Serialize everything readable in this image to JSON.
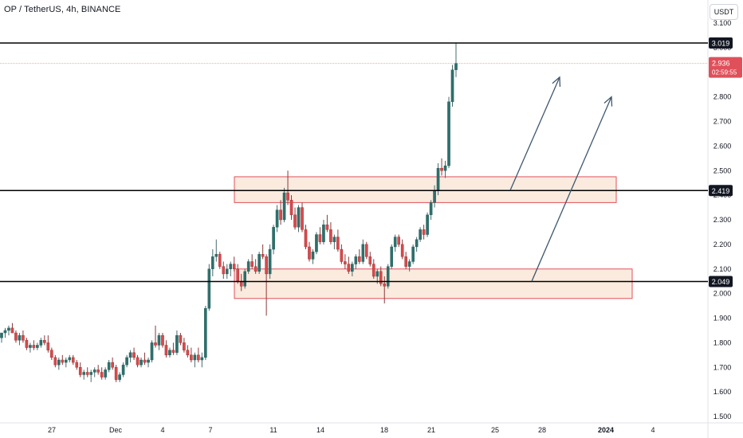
{
  "header": {
    "title": "OP / TetherUS, 4h, BINANCE",
    "unit": "USDT"
  },
  "chart_data": {
    "type": "candlestick",
    "ylim": [
      1.5,
      3.14
    ],
    "y_ticks": [
      "1.500",
      "1.600",
      "1.700",
      "1.800",
      "1.900",
      "2.000",
      "2.100",
      "2.200",
      "2.300",
      "2.400",
      "2.500",
      "2.600",
      "2.700",
      "2.800",
      "2.900",
      "3.000",
      "3.100"
    ],
    "x_ticks": [
      "27",
      "Dec",
      "4",
      "7",
      "11",
      "14",
      "18",
      "21",
      "25",
      "28",
      "2024",
      "4"
    ],
    "horizontal_levels": [
      {
        "value": 3.019,
        "label": "3.019"
      },
      {
        "value": 2.419,
        "label": "2.419"
      },
      {
        "value": 2.049,
        "label": "2.049"
      }
    ],
    "last_price": {
      "value": 2.936,
      "label": "2.936",
      "countdown": "02:59:55"
    },
    "zones": [
      {
        "from": 2.37,
        "to": 2.475
      },
      {
        "from": 1.98,
        "to": 2.1
      }
    ],
    "arrows": [
      {
        "from": [
          640,
          2.42
        ],
        "to": [
          702,
          2.88
        ]
      },
      {
        "from": [
          667,
          2.05
        ],
        "to": [
          767,
          2.8
        ]
      }
    ],
    "candles_ohlc": [
      [
        1.82,
        1.84,
        1.8,
        1.84
      ],
      [
        1.84,
        1.86,
        1.82,
        1.85
      ],
      [
        1.85,
        1.87,
        1.83,
        1.86
      ],
      [
        1.86,
        1.88,
        1.84,
        1.84
      ],
      [
        1.84,
        1.85,
        1.8,
        1.81
      ],
      [
        1.81,
        1.84,
        1.79,
        1.83
      ],
      [
        1.83,
        1.85,
        1.8,
        1.81
      ],
      [
        1.81,
        1.82,
        1.77,
        1.78
      ],
      [
        1.78,
        1.8,
        1.76,
        1.79
      ],
      [
        1.79,
        1.81,
        1.77,
        1.78
      ],
      [
        1.78,
        1.8,
        1.77,
        1.79
      ],
      [
        1.79,
        1.82,
        1.78,
        1.81
      ],
      [
        1.81,
        1.83,
        1.79,
        1.8
      ],
      [
        1.8,
        1.83,
        1.76,
        1.77
      ],
      [
        1.77,
        1.78,
        1.73,
        1.74
      ],
      [
        1.74,
        1.75,
        1.7,
        1.71
      ],
      [
        1.71,
        1.74,
        1.69,
        1.73
      ],
      [
        1.73,
        1.75,
        1.71,
        1.72
      ],
      [
        1.72,
        1.74,
        1.7,
        1.73
      ],
      [
        1.73,
        1.75,
        1.72,
        1.74
      ],
      [
        1.74,
        1.75,
        1.71,
        1.72
      ],
      [
        1.72,
        1.73,
        1.69,
        1.7
      ],
      [
        1.7,
        1.72,
        1.66,
        1.67
      ],
      [
        1.67,
        1.69,
        1.65,
        1.68
      ],
      [
        1.68,
        1.7,
        1.66,
        1.67
      ],
      [
        1.67,
        1.69,
        1.64,
        1.68
      ],
      [
        1.68,
        1.7,
        1.66,
        1.69
      ],
      [
        1.69,
        1.71,
        1.67,
        1.68
      ],
      [
        1.68,
        1.7,
        1.65,
        1.66
      ],
      [
        1.66,
        1.7,
        1.65,
        1.69
      ],
      [
        1.69,
        1.73,
        1.68,
        1.72
      ],
      [
        1.72,
        1.74,
        1.69,
        1.7
      ],
      [
        1.7,
        1.71,
        1.64,
        1.65
      ],
      [
        1.65,
        1.68,
        1.64,
        1.67
      ],
      [
        1.67,
        1.72,
        1.66,
        1.71
      ],
      [
        1.71,
        1.75,
        1.7,
        1.74
      ],
      [
        1.74,
        1.77,
        1.72,
        1.76
      ],
      [
        1.76,
        1.78,
        1.73,
        1.74
      ],
      [
        1.74,
        1.75,
        1.7,
        1.71
      ],
      [
        1.71,
        1.74,
        1.7,
        1.73
      ],
      [
        1.73,
        1.76,
        1.71,
        1.72
      ],
      [
        1.72,
        1.74,
        1.7,
        1.73
      ],
      [
        1.73,
        1.81,
        1.72,
        1.8
      ],
      [
        1.8,
        1.87,
        1.78,
        1.79
      ],
      [
        1.79,
        1.84,
        1.77,
        1.83
      ],
      [
        1.83,
        1.84,
        1.78,
        1.79
      ],
      [
        1.79,
        1.81,
        1.74,
        1.75
      ],
      [
        1.75,
        1.78,
        1.74,
        1.77
      ],
      [
        1.77,
        1.8,
        1.75,
        1.76
      ],
      [
        1.76,
        1.85,
        1.75,
        1.83
      ],
      [
        1.83,
        1.84,
        1.79,
        1.8
      ],
      [
        1.8,
        1.82,
        1.76,
        1.77
      ],
      [
        1.77,
        1.79,
        1.74,
        1.75
      ],
      [
        1.75,
        1.78,
        1.72,
        1.73
      ],
      [
        1.73,
        1.76,
        1.7,
        1.75
      ],
      [
        1.75,
        1.78,
        1.72,
        1.73
      ],
      [
        1.73,
        1.76,
        1.7,
        1.74
      ],
      [
        1.74,
        1.95,
        1.73,
        1.94
      ],
      [
        1.94,
        2.12,
        1.93,
        2.1
      ],
      [
        2.1,
        2.18,
        2.07,
        2.15
      ],
      [
        2.15,
        2.22,
        2.13,
        2.16
      ],
      [
        2.16,
        2.17,
        2.1,
        2.11
      ],
      [
        2.11,
        2.13,
        2.06,
        2.08
      ],
      [
        2.08,
        2.12,
        2.06,
        2.1
      ],
      [
        2.1,
        2.13,
        2.07,
        2.12
      ],
      [
        2.12,
        2.15,
        2.09,
        2.1
      ],
      [
        2.1,
        2.12,
        2.04,
        2.05
      ],
      [
        2.05,
        2.08,
        2.01,
        2.03
      ],
      [
        2.03,
        2.1,
        2.02,
        2.09
      ],
      [
        2.09,
        2.14,
        2.08,
        2.13
      ],
      [
        2.13,
        2.16,
        2.1,
        2.11
      ],
      [
        2.11,
        2.14,
        2.08,
        2.09
      ],
      [
        2.09,
        2.17,
        2.08,
        2.16
      ],
      [
        2.16,
        2.2,
        2.14,
        2.15
      ],
      [
        2.15,
        2.16,
        1.91,
        2.08
      ],
      [
        2.08,
        2.2,
        2.06,
        2.18
      ],
      [
        2.18,
        2.28,
        2.16,
        2.27
      ],
      [
        2.27,
        2.36,
        2.25,
        2.34
      ],
      [
        2.34,
        2.38,
        2.28,
        2.3
      ],
      [
        2.3,
        2.43,
        2.29,
        2.41
      ],
      [
        2.41,
        2.5,
        2.36,
        2.38
      ],
      [
        2.38,
        2.4,
        2.3,
        2.32
      ],
      [
        2.32,
        2.35,
        2.26,
        2.27
      ],
      [
        2.27,
        2.36,
        2.25,
        2.35
      ],
      [
        2.35,
        2.37,
        2.25,
        2.26
      ],
      [
        2.26,
        2.28,
        2.18,
        2.19
      ],
      [
        2.19,
        2.21,
        2.13,
        2.14
      ],
      [
        2.14,
        2.18,
        2.12,
        2.17
      ],
      [
        2.17,
        2.25,
        2.16,
        2.24
      ],
      [
        2.24,
        2.27,
        2.2,
        2.21
      ],
      [
        2.21,
        2.3,
        2.2,
        2.28
      ],
      [
        2.28,
        2.32,
        2.25,
        2.26
      ],
      [
        2.26,
        2.29,
        2.2,
        2.21
      ],
      [
        2.21,
        2.24,
        2.18,
        2.23
      ],
      [
        2.23,
        2.26,
        2.17,
        2.18
      ],
      [
        2.18,
        2.2,
        2.12,
        2.13
      ],
      [
        2.13,
        2.16,
        2.1,
        2.12
      ],
      [
        2.12,
        2.15,
        2.08,
        2.09
      ],
      [
        2.09,
        2.13,
        2.07,
        2.12
      ],
      [
        2.12,
        2.16,
        2.1,
        2.15
      ],
      [
        2.15,
        2.18,
        2.12,
        2.13
      ],
      [
        2.13,
        2.22,
        2.12,
        2.2
      ],
      [
        2.2,
        2.21,
        2.14,
        2.15
      ],
      [
        2.15,
        2.17,
        2.11,
        2.12
      ],
      [
        2.12,
        2.14,
        2.06,
        2.07
      ],
      [
        2.07,
        2.1,
        2.04,
        2.09
      ],
      [
        2.09,
        2.11,
        2.03,
        2.04
      ],
      [
        2.04,
        2.07,
        1.96,
        2.03
      ],
      [
        2.03,
        2.12,
        2.02,
        2.11
      ],
      [
        2.11,
        2.2,
        2.1,
        2.19
      ],
      [
        2.19,
        2.24,
        2.17,
        2.23
      ],
      [
        2.23,
        2.24,
        2.19,
        2.2
      ],
      [
        2.2,
        2.22,
        2.14,
        2.15
      ],
      [
        2.15,
        2.17,
        2.1,
        2.11
      ],
      [
        2.11,
        2.14,
        2.09,
        2.13
      ],
      [
        2.13,
        2.2,
        2.12,
        2.19
      ],
      [
        2.19,
        2.23,
        2.17,
        2.22
      ],
      [
        2.22,
        2.27,
        2.21,
        2.26
      ],
      [
        2.26,
        2.28,
        2.22,
        2.24
      ],
      [
        2.24,
        2.33,
        2.23,
        2.32
      ],
      [
        2.32,
        2.38,
        2.3,
        2.37
      ],
      [
        2.37,
        2.44,
        2.35,
        2.42
      ],
      [
        2.42,
        2.53,
        2.4,
        2.51
      ],
      [
        2.51,
        2.55,
        2.48,
        2.5
      ],
      [
        2.5,
        2.54,
        2.47,
        2.52
      ],
      [
        2.52,
        2.8,
        2.51,
        2.78
      ],
      [
        2.78,
        2.93,
        2.76,
        2.91
      ],
      [
        2.91,
        3.02,
        2.88,
        2.936
      ]
    ]
  }
}
